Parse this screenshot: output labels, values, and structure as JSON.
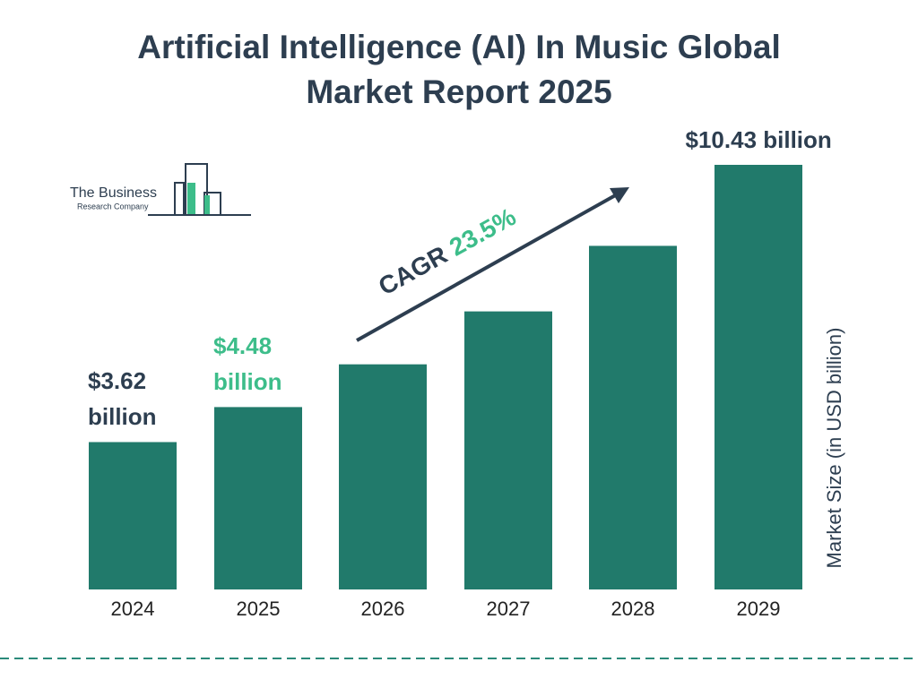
{
  "chart_data": {
    "type": "bar",
    "title": "Artificial Intelligence (AI) In Music Global Market Report 2025",
    "categories": [
      "2024",
      "2025",
      "2026",
      "2027",
      "2028",
      "2029"
    ],
    "values": [
      3.62,
      4.48,
      5.53,
      6.83,
      8.44,
      10.43
    ],
    "value_labels": [
      "$3.62 billion",
      "$4.48 billion",
      null,
      null,
      null,
      "$10.43 billion"
    ],
    "value_label_colors": [
      "#2d3e50",
      "#3dbd8a",
      null,
      null,
      null,
      "#2d3e50"
    ],
    "color": "#217a6b",
    "y_label": "Market Size (in USD billion)",
    "annotation": {
      "label": "CAGR",
      "value": "23.5%",
      "value_color": "#3dbd8a"
    },
    "logo": {
      "line1": "The Business",
      "line2": "Research Company"
    }
  }
}
